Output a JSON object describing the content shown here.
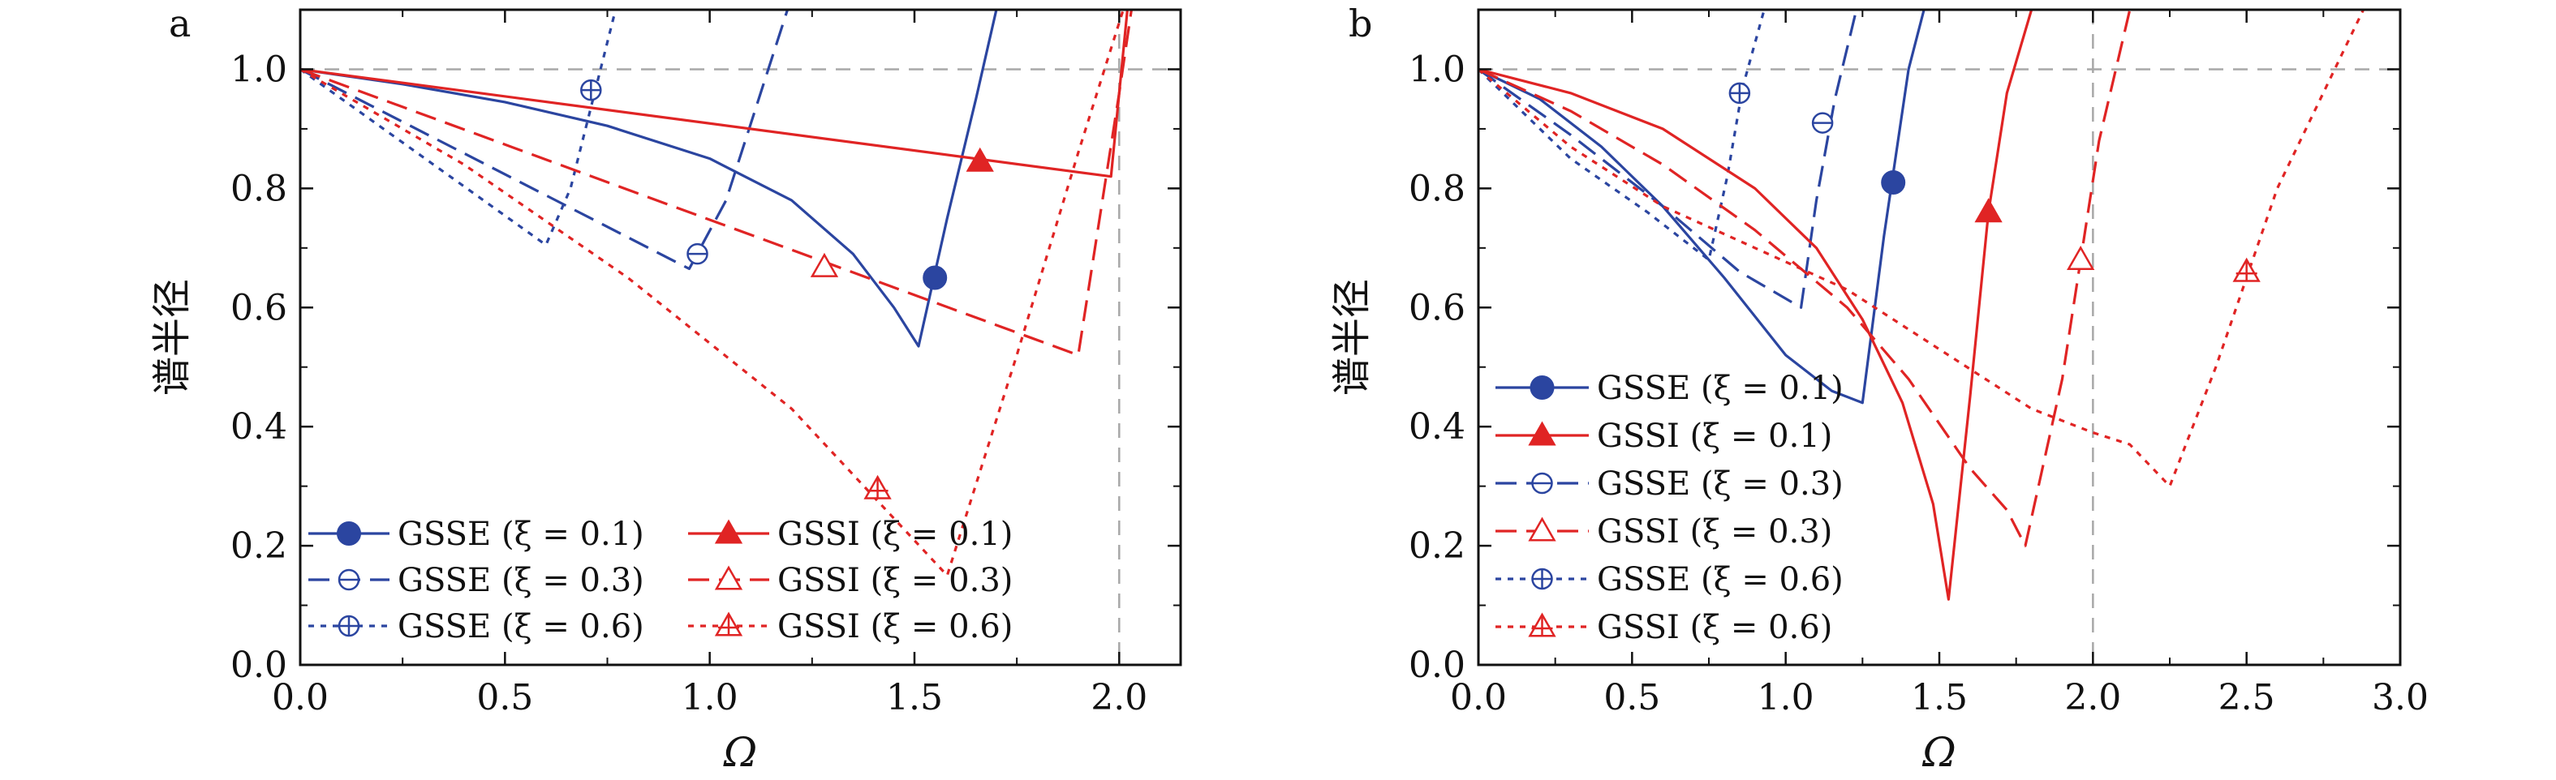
{
  "chart_data": [
    {
      "type": "line",
      "panel_label": "a",
      "xlabel": "Ω",
      "ylabel": "谱半径",
      "xlim": [
        0,
        2.15
      ],
      "ylim": [
        0,
        1.1
      ],
      "xticks": [
        "0.0",
        "0.5",
        "1.0",
        "1.5",
        "2.0"
      ],
      "yticks": [
        "0.0",
        "0.2",
        "0.4",
        "0.6",
        "0.8",
        "1.0"
      ],
      "reference_lines": {
        "y": 1.0,
        "x": 2.0
      },
      "grid": false,
      "legend_placement": "bottom-left, 2 columns",
      "series": [
        {
          "name": "GSSE (ξ = 0.1)",
          "color": "#2b45a0",
          "dash": "solid",
          "marker": "filled-circle",
          "marker_at": [
            1.55,
            0.65
          ],
          "x": [
            0,
            0.25,
            0.5,
            0.75,
            1.0,
            1.2,
            1.35,
            1.45,
            1.51,
            1.58,
            1.65,
            1.7
          ],
          "y": [
            1.0,
            0.975,
            0.945,
            0.905,
            0.85,
            0.78,
            0.69,
            0.6,
            0.535,
            0.75,
            0.95,
            1.1
          ]
        },
        {
          "name": "GSSE (ξ = 0.3)",
          "color": "#2b45a0",
          "dash": "dashed",
          "marker": "circle-minus",
          "marker_at": [
            0.97,
            0.69
          ],
          "x": [
            0,
            0.95,
            1.04,
            1.19
          ],
          "y": [
            1.0,
            0.665,
            0.78,
            1.1
          ]
        },
        {
          "name": "GSSE (ξ = 0.6)",
          "color": "#2b45a0",
          "dash": "dotted",
          "marker": "circle-plus",
          "marker_at": [
            0.71,
            0.965
          ],
          "x": [
            0,
            0.6,
            0.66,
            0.77
          ],
          "y": [
            1.0,
            0.705,
            0.8,
            1.1
          ]
        },
        {
          "name": "GSSI (ξ = 0.1)",
          "color": "#e02424",
          "dash": "solid",
          "marker": "filled-triangle",
          "marker_at": [
            1.66,
            0.845
          ],
          "x": [
            0,
            1.98,
            2.02
          ],
          "y": [
            1.0,
            0.82,
            1.1
          ]
        },
        {
          "name": "GSSI (ξ = 0.3)",
          "color": "#e02424",
          "dash": "dashed",
          "marker": "open-triangle",
          "marker_at": [
            1.28,
            0.668
          ],
          "x": [
            0,
            1.9,
            2.0,
            2.03
          ],
          "y": [
            1.0,
            0.52,
            0.96,
            1.1
          ]
        },
        {
          "name": "GSSI (ξ = 0.6)",
          "color": "#e02424",
          "dash": "dotted",
          "marker": "triangle-plus",
          "marker_at": [
            1.41,
            0.295
          ],
          "x": [
            0,
            0.4,
            0.8,
            1.2,
            1.58,
            1.75,
            1.9,
            2.01
          ],
          "y": [
            1.0,
            0.84,
            0.65,
            0.43,
            0.15,
            0.52,
            0.86,
            1.1
          ]
        }
      ]
    },
    {
      "type": "line",
      "panel_label": "b",
      "xlabel": "Ω",
      "ylabel": "谱半径",
      "xlim": [
        0,
        3.0
      ],
      "ylim": [
        0,
        1.1
      ],
      "xticks": [
        "0.0",
        "0.5",
        "1.0",
        "1.5",
        "2.0",
        "2.5",
        "3.0"
      ],
      "yticks": [
        "0.0",
        "0.2",
        "0.4",
        "0.6",
        "0.8",
        "1.0"
      ],
      "reference_lines": {
        "y": 1.0,
        "x": 2.0
      },
      "grid": false,
      "legend_placement": "lower-left, 1 column",
      "series": [
        {
          "name": "GSSE (ξ = 0.1)",
          "color": "#2b45a0",
          "dash": "solid",
          "marker": "filled-circle",
          "marker_at": [
            1.35,
            0.81
          ],
          "x": [
            0,
            0.2,
            0.4,
            0.6,
            0.8,
            1.0,
            1.15,
            1.25,
            1.32,
            1.4,
            1.45
          ],
          "y": [
            1.0,
            0.95,
            0.87,
            0.77,
            0.65,
            0.52,
            0.46,
            0.44,
            0.72,
            1.0,
            1.1
          ]
        },
        {
          "name": "GSSE (ξ = 0.3)",
          "color": "#2b45a0",
          "dash": "dashed",
          "marker": "circle-minus",
          "marker_at": [
            1.12,
            0.91
          ],
          "x": [
            0,
            0.3,
            0.6,
            0.85,
            1.05,
            1.1,
            1.16,
            1.23
          ],
          "y": [
            1.0,
            0.89,
            0.77,
            0.66,
            0.6,
            0.78,
            0.95,
            1.1
          ]
        },
        {
          "name": "GSSE (ξ = 0.6)",
          "color": "#2b45a0",
          "dash": "dotted",
          "marker": "circle-plus",
          "marker_at": [
            0.85,
            0.96
          ],
          "x": [
            0,
            0.3,
            0.55,
            0.75,
            0.81,
            0.86,
            0.93
          ],
          "y": [
            1.0,
            0.85,
            0.76,
            0.68,
            0.82,
            0.97,
            1.1
          ]
        },
        {
          "name": "GSSI (ξ = 0.1)",
          "color": "#e02424",
          "dash": "solid",
          "marker": "filled-triangle",
          "marker_at": [
            1.66,
            0.76
          ],
          "x": [
            0,
            0.3,
            0.6,
            0.9,
            1.1,
            1.25,
            1.38,
            1.48,
            1.53,
            1.6,
            1.66,
            1.72,
            1.8
          ],
          "y": [
            1.0,
            0.96,
            0.9,
            0.8,
            0.7,
            0.58,
            0.44,
            0.27,
            0.11,
            0.45,
            0.76,
            0.96,
            1.1
          ]
        },
        {
          "name": "GSSI (ξ = 0.3)",
          "color": "#e02424",
          "dash": "dashed",
          "marker": "open-triangle",
          "marker_at": [
            1.96,
            0.68
          ],
          "x": [
            0,
            0.3,
            0.6,
            0.9,
            1.2,
            1.4,
            1.6,
            1.72,
            1.78,
            1.9,
            2.02,
            2.12
          ],
          "y": [
            1.0,
            0.93,
            0.84,
            0.73,
            0.6,
            0.48,
            0.33,
            0.26,
            0.2,
            0.48,
            0.88,
            1.1
          ]
        },
        {
          "name": "GSSI (ξ = 0.6)",
          "color": "#e02424",
          "dash": "dotted",
          "marker": "triangle-plus",
          "marker_at": [
            2.5,
            0.66
          ],
          "x": [
            0,
            0.3,
            0.6,
            0.9,
            1.2,
            1.5,
            1.8,
            2.0,
            2.12,
            2.25,
            2.4,
            2.6,
            2.88
          ],
          "y": [
            1.0,
            0.87,
            0.77,
            0.7,
            0.63,
            0.53,
            0.43,
            0.39,
            0.37,
            0.3,
            0.5,
            0.8,
            1.1
          ]
        }
      ]
    }
  ]
}
